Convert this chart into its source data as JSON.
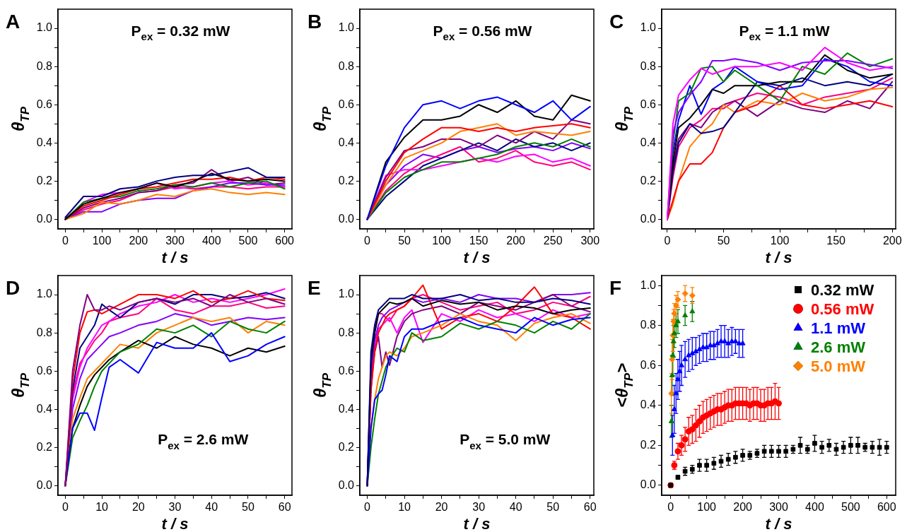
{
  "chart_data": [
    {
      "type": "line",
      "title": "A",
      "xlabel": "t / s",
      "ylabel": "θ$_{TP}$",
      "annotations": [
        "P$_{ex}$ = 0.32 mW"
      ],
      "grid": false,
      "xlim": [
        -20,
        620
      ],
      "xticks": [
        0,
        {
          "value": 50,
          "label": null
        },
        100,
        {
          "value": 150,
          "label": null
        },
        200,
        {
          "value": 250,
          "label": null
        },
        300,
        {
          "value": 350,
          "label": null
        },
        400,
        {
          "value": 450,
          "label": null
        },
        500,
        {
          "value": 550,
          "label": null
        },
        600
      ],
      "ylim": [
        -0.05,
        1.1
      ],
      "yticks": [
        {
          "value": 0,
          "label": "0.0"
        },
        {
          "value": 0.1,
          "label": null
        },
        0.2,
        {
          "value": 0.3,
          "label": null
        },
        0.4,
        {
          "value": 0.5,
          "label": null
        },
        0.6,
        {
          "value": 0.7,
          "label": null
        },
        0.8,
        {
          "value": 0.9,
          "label": null
        },
        {
          "value": 1,
          "label": "1.0"
        }
      ],
      "x": [
        0,
        50,
        100,
        150,
        200,
        250,
        300,
        350,
        400,
        450,
        500,
        550,
        600
      ],
      "series": [
        {
          "color": "#000080",
          "values": [
            0.01,
            0.12,
            0.12,
            0.16,
            0.17,
            0.2,
            0.22,
            0.23,
            0.23,
            0.25,
            0.27,
            0.22,
            0.22
          ]
        },
        {
          "color": "#000000",
          "values": [
            0,
            0.08,
            0.11,
            0.14,
            0.16,
            0.19,
            0.17,
            0.2,
            0.24,
            0.21,
            0.2,
            0.21,
            0.2
          ]
        },
        {
          "color": "#ff0000",
          "values": [
            0,
            0.07,
            0.1,
            0.13,
            0.16,
            0.17,
            0.19,
            0.21,
            0.21,
            0.22,
            0.2,
            0.22,
            0.21
          ]
        },
        {
          "color": "#008000",
          "values": [
            0,
            0.09,
            0.11,
            0.12,
            0.15,
            0.16,
            0.18,
            0.17,
            0.19,
            0.17,
            0.19,
            0.2,
            0.16
          ]
        },
        {
          "color": "#ff8000",
          "values": [
            0,
            0.03,
            0.09,
            0.08,
            0.1,
            0.13,
            0.12,
            0.15,
            0.16,
            0.14,
            0.13,
            0.14,
            0.13
          ]
        },
        {
          "color": "#8000ff",
          "values": [
            0,
            0.04,
            0.04,
            0.08,
            0.1,
            0.11,
            0.11,
            0.15,
            0.17,
            0.19,
            0.19,
            0.18,
            0.18
          ]
        },
        {
          "color": "#ff00ff",
          "values": [
            0,
            0.09,
            0.13,
            0.14,
            0.16,
            0.19,
            0.16,
            0.17,
            0.19,
            0.2,
            0.18,
            0.19,
            0.17
          ]
        },
        {
          "color": "#800080",
          "values": [
            0,
            0.06,
            0.09,
            0.11,
            0.14,
            0.15,
            0.18,
            0.19,
            0.26,
            0.2,
            0.22,
            0.18,
            0.19
          ]
        },
        {
          "color": "#ff0080",
          "values": [
            0,
            0.05,
            0.08,
            0.1,
            0.14,
            0.15,
            0.17,
            0.16,
            0.17,
            0.17,
            0.16,
            0.17,
            0.17
          ]
        }
      ]
    },
    {
      "type": "line",
      "title": "B",
      "xlabel": "t / s",
      "ylabel": "θ$_{TP}$",
      "annotations": [
        "P$_{ex}$ = 0.56 mW"
      ],
      "grid": false,
      "xlim": [
        -10,
        305
      ],
      "xticks": [
        0,
        {
          "value": 25,
          "label": null
        },
        50,
        {
          "value": 75,
          "label": null
        },
        100,
        {
          "value": 125,
          "label": null
        },
        150,
        {
          "value": 175,
          "label": null
        },
        200,
        {
          "value": 225,
          "label": null
        },
        250,
        {
          "value": 275,
          "label": null
        },
        300
      ],
      "ylim": [
        -0.05,
        1.1
      ],
      "yticks": [
        {
          "value": 0,
          "label": "0.0"
        },
        {
          "value": 0.1,
          "label": null
        },
        0.2,
        {
          "value": 0.3,
          "label": null
        },
        0.4,
        {
          "value": 0.5,
          "label": null
        },
        0.6,
        {
          "value": 0.7,
          "label": null
        },
        0.8,
        {
          "value": 0.9,
          "label": null
        },
        {
          "value": 1,
          "label": "1.0"
        }
      ],
      "x": [
        0,
        25,
        50,
        75,
        100,
        125,
        150,
        175,
        200,
        225,
        250,
        275,
        300
      ],
      "series": [
        {
          "color": "#0000ff",
          "values": [
            0,
            0.28,
            0.48,
            0.6,
            0.62,
            0.58,
            0.62,
            0.64,
            0.6,
            0.56,
            0.62,
            0.52,
            0.59
          ]
        },
        {
          "color": "#000000",
          "values": [
            0,
            0.3,
            0.43,
            0.52,
            0.52,
            0.54,
            0.6,
            0.56,
            0.62,
            0.54,
            0.52,
            0.65,
            0.62
          ]
        },
        {
          "color": "#ff0000",
          "values": [
            0,
            0.2,
            0.35,
            0.42,
            0.48,
            0.48,
            0.46,
            0.48,
            0.46,
            0.48,
            0.49,
            0.5,
            0.48
          ]
        },
        {
          "color": "#ff8000",
          "values": [
            0,
            0.18,
            0.32,
            0.36,
            0.4,
            0.46,
            0.48,
            0.5,
            0.44,
            0.46,
            0.45,
            0.44,
            0.46
          ]
        },
        {
          "color": "#008000",
          "values": [
            0,
            0.14,
            0.22,
            0.26,
            0.3,
            0.3,
            0.32,
            0.34,
            0.38,
            0.4,
            0.38,
            0.42,
            0.38
          ]
        },
        {
          "color": "#800080",
          "values": [
            0,
            0.22,
            0.36,
            0.38,
            0.42,
            0.42,
            0.38,
            0.44,
            0.4,
            0.46,
            0.42,
            0.52,
            0.5
          ]
        },
        {
          "color": "#ff00ff",
          "values": [
            0,
            0.23,
            0.26,
            0.26,
            0.28,
            0.3,
            0.32,
            0.3,
            0.33,
            0.34,
            0.3,
            0.32,
            0.28
          ]
        },
        {
          "color": "#000080",
          "values": [
            0,
            0.12,
            0.2,
            0.28,
            0.32,
            0.36,
            0.4,
            0.36,
            0.42,
            0.38,
            0.4,
            0.36,
            0.4
          ]
        },
        {
          "color": "#ff0080",
          "values": [
            0,
            0.15,
            0.24,
            0.3,
            0.34,
            0.38,
            0.3,
            0.32,
            0.36,
            0.3,
            0.28,
            0.3,
            0.26
          ]
        },
        {
          "color": "#8000ff",
          "values": [
            0,
            0.18,
            0.28,
            0.34,
            0.32,
            0.36,
            0.38,
            0.35,
            0.37,
            0.38,
            0.36,
            0.4,
            0.37
          ]
        }
      ]
    },
    {
      "type": "line",
      "title": "C",
      "xlabel": "t / s",
      "ylabel": "θ$_{TP}$",
      "annotations": [
        "P$_{ex}$ = 1.1 mW"
      ],
      "grid": false,
      "xlim": [
        -5,
        203
      ],
      "xticks": [
        0,
        {
          "value": 25,
          "label": null
        },
        50,
        {
          "value": 75,
          "label": null
        },
        100,
        {
          "value": 125,
          "label": null
        },
        150,
        {
          "value": 175,
          "label": null
        },
        200
      ],
      "ylim": [
        -0.05,
        1.1
      ],
      "yticks": [
        {
          "value": 0,
          "label": "0.0"
        },
        {
          "value": 0.1,
          "label": null
        },
        0.2,
        {
          "value": 0.3,
          "label": null
        },
        0.4,
        {
          "value": 0.5,
          "label": null
        },
        0.6,
        {
          "value": 0.7,
          "label": null
        },
        0.8,
        {
          "value": 0.9,
          "label": null
        },
        {
          "value": 1,
          "label": "1.0"
        }
      ],
      "x": [
        0,
        5,
        10,
        20,
        30,
        40,
        50,
        60,
        80,
        100,
        120,
        140,
        160,
        180,
        200
      ],
      "series": [
        {
          "color": "#ff00ff",
          "values": [
            0,
            0.5,
            0.65,
            0.73,
            0.79,
            0.76,
            0.78,
            0.8,
            0.8,
            0.82,
            0.78,
            0.9,
            0.82,
            0.78,
            0.8
          ]
        },
        {
          "color": "#8000ff",
          "values": [
            0,
            0.45,
            0.56,
            0.65,
            0.72,
            0.83,
            0.83,
            0.84,
            0.82,
            0.78,
            0.82,
            0.83,
            0.83,
            0.81,
            0.79
          ]
        },
        {
          "color": "#008000",
          "values": [
            0,
            0.4,
            0.62,
            0.66,
            0.79,
            0.8,
            0.72,
            0.78,
            0.7,
            0.62,
            0.8,
            0.76,
            0.87,
            0.8,
            0.84
          ]
        },
        {
          "color": "#000000",
          "values": [
            0,
            0.3,
            0.48,
            0.53,
            0.6,
            0.68,
            0.66,
            0.7,
            0.7,
            0.72,
            0.72,
            0.86,
            0.78,
            0.74,
            0.76
          ]
        },
        {
          "color": "#0000ff",
          "values": [
            0,
            0.35,
            0.52,
            0.7,
            0.55,
            0.68,
            0.72,
            0.8,
            0.72,
            0.68,
            0.7,
            0.84,
            0.8,
            0.72,
            0.7
          ]
        },
        {
          "color": "#000080",
          "values": [
            0,
            0.25,
            0.4,
            0.5,
            0.45,
            0.46,
            0.48,
            0.56,
            0.72,
            0.7,
            0.74,
            0.7,
            0.72,
            0.7,
            0.76
          ]
        },
        {
          "color": "#ff0000",
          "values": [
            0,
            0.1,
            0.2,
            0.29,
            0.29,
            0.35,
            0.48,
            0.56,
            0.6,
            0.7,
            0.6,
            0.58,
            0.6,
            0.62,
            0.59
          ]
        },
        {
          "color": "#ff8000",
          "values": [
            0,
            0.08,
            0.2,
            0.38,
            0.45,
            0.5,
            0.6,
            0.56,
            0.62,
            0.6,
            0.66,
            0.62,
            0.64,
            0.68,
            0.69
          ]
        },
        {
          "color": "#800080",
          "values": [
            0,
            0.28,
            0.42,
            0.5,
            0.48,
            0.56,
            0.6,
            0.62,
            0.54,
            0.62,
            0.58,
            0.56,
            0.62,
            0.58,
            0.72
          ]
        },
        {
          "color": "#ff0080",
          "values": [
            0,
            0.22,
            0.38,
            0.48,
            0.52,
            0.58,
            0.58,
            0.62,
            0.66,
            0.64,
            0.6,
            0.64,
            0.66,
            0.68,
            0.74
          ]
        }
      ]
    },
    {
      "type": "line",
      "title": "D",
      "xlabel": "t / s",
      "ylabel": "θ$_{TP}$",
      "annotations": [
        "P$_{ex}$ = 2.6 mW"
      ],
      "grid": false,
      "xlim": [
        -2,
        62
      ],
      "xticks": [
        0,
        {
          "value": 5,
          "label": null
        },
        10,
        {
          "value": 15,
          "label": null
        },
        20,
        {
          "value": 25,
          "label": null
        },
        30,
        {
          "value": 35,
          "label": null
        },
        40,
        {
          "value": 45,
          "label": null
        },
        50,
        {
          "value": 55,
          "label": null
        },
        60
      ],
      "ylim": [
        -0.05,
        1.1
      ],
      "yticks": [
        {
          "value": 0,
          "label": "0.0"
        },
        {
          "value": 0.1,
          "label": null
        },
        0.2,
        {
          "value": 0.3,
          "label": null
        },
        0.4,
        {
          "value": 0.5,
          "label": null
        },
        0.6,
        {
          "value": 0.7,
          "label": null
        },
        0.8,
        {
          "value": 0.9,
          "label": null
        },
        {
          "value": 1,
          "label": "1.0"
        }
      ],
      "x": [
        0,
        2,
        4,
        6,
        8,
        10,
        12,
        15,
        20,
        25,
        30,
        35,
        40,
        45,
        50,
        55,
        60
      ],
      "series": [
        {
          "color": "#800080",
          "values": [
            0,
            0.6,
            0.84,
            1.0,
            0.92,
            0.92,
            0.94,
            0.92,
            0.96,
            0.98,
            0.96,
            0.98,
            0.94,
            1.0,
            0.96,
            0.98,
            0.95
          ]
        },
        {
          "color": "#ff0000",
          "values": [
            0,
            0.55,
            0.8,
            0.91,
            0.92,
            0.9,
            0.92,
            0.95,
            1.0,
            1.0,
            0.98,
            1.02,
            0.96,
            0.98,
            1.02,
            0.98,
            0.97
          ]
        },
        {
          "color": "#000080",
          "values": [
            0,
            0.5,
            0.72,
            0.78,
            0.84,
            0.95,
            0.92,
            0.88,
            0.96,
            0.98,
            0.95,
            1.0,
            1.0,
            0.98,
            0.99,
            1.01,
            0.98
          ]
        },
        {
          "color": "#0000ff",
          "values": [
            0,
            0.3,
            0.38,
            0.38,
            0.29,
            0.46,
            0.62,
            0.66,
            0.59,
            0.75,
            0.72,
            0.72,
            0.8,
            0.65,
            0.68,
            0.74,
            0.78
          ]
        },
        {
          "color": "#008000",
          "values": [
            0,
            0.25,
            0.34,
            0.42,
            0.52,
            0.6,
            0.64,
            0.7,
            0.74,
            0.82,
            0.8,
            0.84,
            0.78,
            0.86,
            0.82,
            0.8,
            0.86
          ]
        },
        {
          "color": "#000000",
          "values": [
            0,
            0.3,
            0.42,
            0.52,
            0.58,
            0.62,
            0.66,
            0.7,
            0.76,
            0.72,
            0.78,
            0.74,
            0.72,
            0.68,
            0.72,
            0.7,
            0.73
          ]
        },
        {
          "color": "#ff8000",
          "values": [
            0,
            0.35,
            0.46,
            0.56,
            0.6,
            0.64,
            0.68,
            0.74,
            0.72,
            0.8,
            0.84,
            0.88,
            0.86,
            0.88,
            0.8,
            0.86,
            0.84
          ]
        },
        {
          "color": "#ff00ff",
          "values": [
            0,
            0.45,
            0.62,
            0.72,
            0.78,
            0.84,
            0.86,
            0.9,
            0.94,
            0.96,
            1.0,
            0.96,
            0.98,
            0.96,
            0.98,
            1.0,
            1.03
          ]
        },
        {
          "color": "#8000ff",
          "values": [
            0,
            0.4,
            0.56,
            0.66,
            0.7,
            0.74,
            0.78,
            0.8,
            0.84,
            0.86,
            0.9,
            0.88,
            0.84,
            0.86,
            0.88,
            0.87,
            0.88
          ]
        },
        {
          "color": "#ff0080",
          "values": [
            0,
            0.48,
            0.64,
            0.7,
            0.76,
            0.8,
            0.86,
            0.88,
            0.9,
            0.98,
            0.92,
            0.9,
            0.94,
            0.94,
            0.96,
            0.93,
            0.94
          ]
        }
      ]
    },
    {
      "type": "line",
      "title": "E",
      "xlabel": "t / s",
      "ylabel": "θ$_{TP}$",
      "annotations": [
        "P$_{ex}$ = 5.0 mW"
      ],
      "grid": false,
      "xlim": [
        -2,
        61
      ],
      "xticks": [
        0,
        {
          "value": 5,
          "label": null
        },
        10,
        {
          "value": 15,
          "label": null
        },
        20,
        {
          "value": 25,
          "label": null
        },
        30,
        {
          "value": 35,
          "label": null
        },
        40,
        {
          "value": 45,
          "label": null
        },
        50,
        {
          "value": 55,
          "label": null
        },
        60
      ],
      "ylim": [
        -0.05,
        1.1
      ],
      "yticks": [
        {
          "value": 0,
          "label": "0.0"
        },
        {
          "value": 0.1,
          "label": null
        },
        0.2,
        {
          "value": 0.3,
          "label": null
        },
        0.4,
        {
          "value": 0.5,
          "label": null
        },
        0.6,
        {
          "value": 0.7,
          "label": null
        },
        0.8,
        {
          "value": 0.9,
          "label": null
        },
        {
          "value": 1,
          "label": "1.0"
        }
      ],
      "x": [
        0,
        1,
        2,
        3,
        4,
        5,
        6,
        8,
        10,
        12,
        15,
        20,
        25,
        30,
        35,
        40,
        45,
        50,
        55,
        60
      ],
      "series": [
        {
          "color": "#000080",
          "values": [
            0,
            0.7,
            0.84,
            0.92,
            0.94,
            0.96,
            0.98,
            0.98,
            0.98,
            1.0,
            0.98,
            0.98,
            1.0,
            0.97,
            0.98,
            0.96,
            0.96,
            0.98,
            0.97,
            0.95
          ]
        },
        {
          "color": "#000000",
          "values": [
            0,
            0.65,
            0.8,
            0.9,
            0.92,
            0.94,
            0.96,
            0.95,
            0.96,
            0.98,
            0.94,
            0.97,
            0.95,
            0.96,
            0.92,
            0.94,
            0.93,
            0.9,
            0.92,
            0.93
          ]
        },
        {
          "color": "#0000ff",
          "values": [
            0,
            0.3,
            0.45,
            0.48,
            0.5,
            0.58,
            0.68,
            0.65,
            0.78,
            0.82,
            0.82,
            0.86,
            0.88,
            0.84,
            0.82,
            0.8,
            0.88,
            0.84,
            0.87,
            0.88
          ]
        },
        {
          "color": "#008000",
          "values": [
            0,
            0.2,
            0.35,
            0.48,
            0.55,
            0.62,
            0.66,
            0.72,
            0.7,
            0.8,
            0.76,
            0.78,
            0.85,
            0.82,
            0.86,
            0.84,
            0.8,
            0.86,
            0.82,
            0.9
          ]
        },
        {
          "color": "#ff8000",
          "values": [
            0,
            0.3,
            0.45,
            0.56,
            0.62,
            0.68,
            0.7,
            0.68,
            0.72,
            0.78,
            0.8,
            0.84,
            0.9,
            0.86,
            0.84,
            0.76,
            0.85,
            0.88,
            0.9,
            0.85
          ]
        },
        {
          "color": "#ff0000",
          "values": [
            0,
            0.5,
            0.7,
            0.8,
            0.84,
            0.88,
            0.9,
            0.92,
            0.94,
            0.98,
            1.05,
            0.82,
            0.88,
            0.9,
            0.86,
            0.94,
            1.04,
            0.9,
            0.88,
            0.82
          ]
        },
        {
          "color": "#800080",
          "values": [
            0,
            0.55,
            0.7,
            0.78,
            0.62,
            0.7,
            0.63,
            0.78,
            0.86,
            0.9,
            0.92,
            0.94,
            0.9,
            0.96,
            0.94,
            0.92,
            0.96,
            1.0,
            0.94,
            0.91
          ]
        },
        {
          "color": "#8000ff",
          "values": [
            0,
            0.6,
            0.76,
            0.84,
            0.88,
            0.9,
            0.92,
            0.94,
            0.96,
            0.98,
            0.96,
            0.98,
            0.96,
            1.0,
            0.98,
            0.98,
            0.96,
            1.0,
            1.0,
            1.01
          ]
        },
        {
          "color": "#ff00ff",
          "values": [
            0,
            0.5,
            0.72,
            0.82,
            0.84,
            0.86,
            0.88,
            0.8,
            0.88,
            0.92,
            0.75,
            0.9,
            0.86,
            0.92,
            0.88,
            0.9,
            0.86,
            0.92,
            0.88,
            0.9
          ]
        },
        {
          "color": "#ff0080",
          "values": [
            0,
            0.55,
            0.8,
            0.9,
            0.9,
            0.88,
            0.86,
            0.92,
            0.94,
            0.98,
            1.0,
            0.96,
            0.92,
            0.94,
            0.96,
            0.9,
            0.92,
            0.96,
            0.94,
            0.99
          ]
        }
      ]
    },
    {
      "type": "scatter",
      "title": "F",
      "xlabel": "t / s",
      "ylabel": "<θ$_{TP}$>",
      "grid": false,
      "legend": "top right",
      "xlim": [
        -25,
        625
      ],
      "xticks": [
        0,
        {
          "value": 50,
          "label": null
        },
        100,
        {
          "value": 150,
          "label": null
        },
        200,
        {
          "value": 250,
          "label": null
        },
        300,
        {
          "value": 350,
          "label": null
        },
        400,
        {
          "value": 450,
          "label": null
        },
        500,
        {
          "value": 550,
          "label": null
        },
        600
      ],
      "ylim": [
        -0.05,
        1.05
      ],
      "yticks": [
        {
          "value": 0,
          "label": "0.0"
        },
        {
          "value": 0.1,
          "label": null
        },
        0.2,
        {
          "value": 0.3,
          "label": null
        },
        0.4,
        {
          "value": 0.5,
          "label": null
        },
        0.6,
        {
          "value": 0.7,
          "label": null
        },
        0.8,
        {
          "value": 0.9,
          "label": null
        },
        {
          "value": 1,
          "label": "1.0"
        }
      ],
      "series": [
        {
          "name": "0.32 mW",
          "color": "#000000",
          "marker": "square",
          "x": [
            0,
            20,
            40,
            60,
            80,
            100,
            120,
            140,
            160,
            180,
            200,
            220,
            240,
            260,
            280,
            300,
            320,
            340,
            360,
            380,
            400,
            420,
            440,
            460,
            480,
            500,
            520,
            540,
            560,
            580,
            600
          ],
          "values": [
            0,
            0.04,
            0.07,
            0.08,
            0.1,
            0.1,
            0.11,
            0.12,
            0.13,
            0.14,
            0.15,
            0.15,
            0.16,
            0.17,
            0.17,
            0.17,
            0.17,
            0.18,
            0.2,
            0.18,
            0.21,
            0.19,
            0.2,
            0.18,
            0.19,
            0.2,
            0.2,
            0.19,
            0.19,
            0.19,
            0.19
          ],
          "errors": [
            0.01,
            0.01,
            0.02,
            0.02,
            0.03,
            0.03,
            0.03,
            0.03,
            0.03,
            0.03,
            0.03,
            0.02,
            0.02,
            0.03,
            0.03,
            0.03,
            0.03,
            0.02,
            0.04,
            0.02,
            0.04,
            0.03,
            0.03,
            0.03,
            0.03,
            0.04,
            0.04,
            0.02,
            0.03,
            0.04,
            0.03
          ]
        },
        {
          "name": "0.56 mW",
          "color": "#ff0000",
          "marker": "circle",
          "x": [
            0,
            10,
            20,
            30,
            40,
            50,
            60,
            70,
            80,
            90,
            100,
            110,
            120,
            130,
            140,
            150,
            160,
            170,
            180,
            190,
            200,
            210,
            220,
            230,
            240,
            250,
            260,
            270,
            280,
            290,
            300
          ],
          "values": [
            0,
            0.1,
            0.17,
            0.2,
            0.23,
            0.27,
            0.28,
            0.3,
            0.32,
            0.34,
            0.35,
            0.36,
            0.37,
            0.38,
            0.38,
            0.39,
            0.4,
            0.4,
            0.41,
            0.41,
            0.41,
            0.41,
            0.4,
            0.41,
            0.41,
            0.4,
            0.4,
            0.41,
            0.41,
            0.42,
            0.41
          ],
          "errors": [
            0.01,
            0.02,
            0.04,
            0.05,
            0.06,
            0.07,
            0.07,
            0.08,
            0.08,
            0.08,
            0.08,
            0.08,
            0.08,
            0.08,
            0.08,
            0.08,
            0.08,
            0.08,
            0.08,
            0.08,
            0.08,
            0.08,
            0.08,
            0.08,
            0.08,
            0.08,
            0.08,
            0.08,
            0.08,
            0.09,
            0.08
          ]
        },
        {
          "name": "1.1 mW",
          "color": "#0000ff",
          "marker": "triangle",
          "x": [
            5,
            10,
            15,
            20,
            25,
            30,
            40,
            50,
            60,
            70,
            80,
            90,
            100,
            110,
            120,
            130,
            140,
            150,
            160,
            170,
            180,
            190,
            200
          ],
          "values": [
            0.25,
            0.38,
            0.46,
            0.53,
            0.57,
            0.6,
            0.63,
            0.65,
            0.66,
            0.67,
            0.68,
            0.69,
            0.69,
            0.7,
            0.7,
            0.71,
            0.72,
            0.72,
            0.71,
            0.72,
            0.72,
            0.71,
            0.71
          ],
          "errors": [
            0.1,
            0.12,
            0.1,
            0.1,
            0.1,
            0.1,
            0.09,
            0.08,
            0.08,
            0.07,
            0.07,
            0.07,
            0.07,
            0.07,
            0.07,
            0.07,
            0.08,
            0.08,
            0.07,
            0.07,
            0.06,
            0.07,
            0.07
          ]
        },
        {
          "name": "2.6 mW",
          "color": "#008000",
          "marker": "triangle",
          "x": [
            2,
            4,
            6,
            8,
            10,
            15,
            20,
            40,
            60
          ],
          "values": [
            0.32,
            0.55,
            0.65,
            0.72,
            0.76,
            0.8,
            0.82,
            0.85,
            0.87
          ],
          "errors": [
            0.08,
            0.1,
            0.1,
            0.08,
            0.07,
            0.06,
            0.06,
            0.05,
            0.05
          ]
        },
        {
          "name": "5.0 mW",
          "color": "#ff8000",
          "marker": "diamond",
          "x": [
            0,
            2,
            4,
            6,
            8,
            10,
            15,
            20,
            40,
            60
          ],
          "values": [
            0,
            0.46,
            0.63,
            0.75,
            0.82,
            0.86,
            0.9,
            0.93,
            0.96,
            0.95
          ],
          "errors": [
            0.01,
            0.1,
            0.1,
            0.08,
            0.06,
            0.05,
            0.05,
            0.04,
            0.04,
            0.04
          ]
        }
      ]
    }
  ]
}
